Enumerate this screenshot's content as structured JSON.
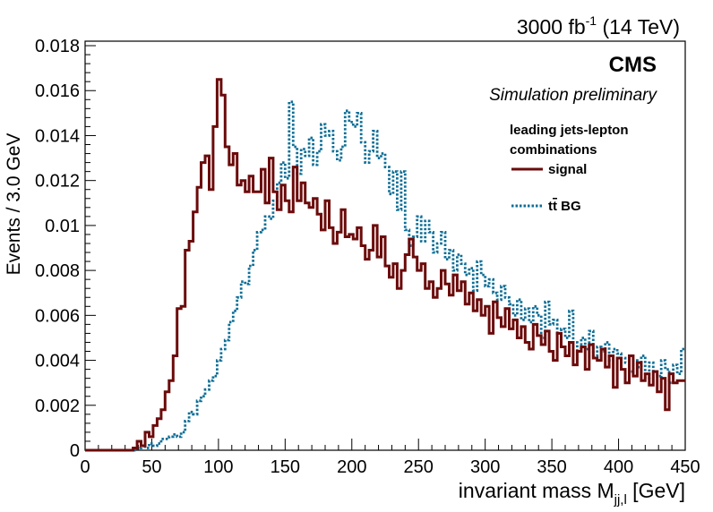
{
  "header": {
    "lumi_text": "3000 fb",
    "lumi_sup": "-1",
    "energy_text": " (14 TeV)"
  },
  "chart_data": {
    "type": "line",
    "experiment_label": "CMS",
    "subtitle": "Simulation preliminary",
    "xlabel_main": "invariant mass M",
    "xlabel_sub": "jj,l",
    "xlabel_unit": " [GeV]",
    "ylabel": "Events / 3.0 GeV",
    "xlim": [
      0,
      450
    ],
    "ylim": [
      0,
      0.0182
    ],
    "xticks": [
      "0",
      "50",
      "100",
      "150",
      "200",
      "250",
      "300",
      "350",
      "400",
      "450"
    ],
    "yticks": [
      "0",
      "0.002",
      "0.004",
      "0.006",
      "0.008",
      "0.01",
      "0.012",
      "0.014",
      "0.016",
      "0.018"
    ],
    "legend_title_lines": [
      "leading jets-lepton",
      "combinations"
    ],
    "legend_position": "top-right",
    "bin_width": 3.0,
    "series": [
      {
        "name": "signal",
        "color": "#6b0b0b",
        "style": "solid",
        "x": [
          36,
          39,
          42,
          45,
          48,
          51,
          54,
          57,
          60,
          63,
          66,
          69,
          72,
          75,
          78,
          81,
          84,
          87,
          90,
          93,
          96,
          99,
          102,
          105,
          108,
          111,
          114,
          117,
          120,
          123,
          126,
          129,
          132,
          135,
          138,
          141,
          144,
          147,
          150,
          153,
          156,
          159,
          162,
          165,
          168,
          171,
          174,
          177,
          180,
          183,
          186,
          189,
          192,
          195,
          198,
          201,
          204,
          207,
          210,
          213,
          216,
          219,
          222,
          225,
          228,
          231,
          234,
          237,
          240,
          243,
          246,
          249,
          252,
          255,
          258,
          261,
          264,
          267,
          270,
          273,
          276,
          279,
          282,
          285,
          288,
          291,
          294,
          297,
          300,
          303,
          306,
          309,
          312,
          315,
          318,
          321,
          324,
          327,
          330,
          333,
          336,
          339,
          342,
          345,
          348,
          351,
          354,
          357,
          360,
          363,
          366,
          369,
          372,
          375,
          378,
          381,
          384,
          387,
          390,
          393,
          396,
          399,
          402,
          405,
          408,
          411,
          414,
          417,
          420,
          423,
          426,
          429,
          432,
          435,
          438,
          441,
          444,
          447
        ],
        "values": [
          0.0001,
          0.0004,
          0.0002,
          0.0008,
          0.0006,
          0.0011,
          0.0014,
          0.0018,
          0.0026,
          0.0031,
          0.0042,
          0.0063,
          0.0064,
          0.0089,
          0.0093,
          0.0106,
          0.0117,
          0.0128,
          0.0131,
          0.0116,
          0.0144,
          0.0165,
          0.0158,
          0.0135,
          0.0127,
          0.0132,
          0.0118,
          0.012,
          0.0115,
          0.0122,
          0.0115,
          0.0115,
          0.0125,
          0.011,
          0.013,
          0.0115,
          0.0107,
          0.0118,
          0.0111,
          0.0106,
          0.0126,
          0.0111,
          0.0119,
          0.011,
          0.0108,
          0.0112,
          0.0105,
          0.0098,
          0.0111,
          0.0099,
          0.0092,
          0.0097,
          0.0107,
          0.0095,
          0.0096,
          0.0094,
          0.0099,
          0.0091,
          0.0085,
          0.0089,
          0.01,
          0.0086,
          0.0095,
          0.0082,
          0.0077,
          0.0083,
          0.0072,
          0.008,
          0.0087,
          0.0094,
          0.0086,
          0.008,
          0.0083,
          0.0072,
          0.0075,
          0.0068,
          0.0072,
          0.008,
          0.0074,
          0.0069,
          0.0078,
          0.0071,
          0.0075,
          0.0065,
          0.007,
          0.0062,
          0.0067,
          0.006,
          0.0064,
          0.0052,
          0.0066,
          0.0059,
          0.0055,
          0.0063,
          0.0054,
          0.0058,
          0.005,
          0.0055,
          0.0048,
          0.0045,
          0.0056,
          0.0051,
          0.0047,
          0.0053,
          0.0044,
          0.004,
          0.0052,
          0.0046,
          0.0042,
          0.0048,
          0.0038,
          0.0044,
          0.0046,
          0.0036,
          0.0047,
          0.0041,
          0.004,
          0.0045,
          0.0037,
          0.0042,
          0.0028,
          0.0041,
          0.0036,
          0.003,
          0.0042,
          0.0033,
          0.0039,
          0.0031,
          0.0034,
          0.0029,
          0.0035,
          0.0026,
          0.0032,
          0.0018,
          0.0034,
          0.003,
          0.0031,
          0.0031
        ]
      },
      {
        "name": "tt̄ BG",
        "legend_main": "t",
        "legend_bar": "t",
        "legend_suffix": " BG",
        "color": "#0e6e96",
        "style": "dotted",
        "x": [
          39,
          42,
          45,
          48,
          51,
          54,
          57,
          60,
          63,
          66,
          69,
          72,
          75,
          78,
          81,
          84,
          87,
          90,
          93,
          96,
          99,
          102,
          105,
          108,
          111,
          114,
          117,
          120,
          123,
          126,
          129,
          132,
          135,
          138,
          141,
          144,
          147,
          150,
          153,
          156,
          159,
          162,
          165,
          168,
          171,
          174,
          177,
          180,
          183,
          186,
          189,
          192,
          195,
          198,
          201,
          204,
          207,
          210,
          213,
          216,
          219,
          222,
          225,
          228,
          231,
          234,
          237,
          240,
          243,
          246,
          249,
          252,
          255,
          258,
          261,
          264,
          267,
          270,
          273,
          276,
          279,
          282,
          285,
          288,
          291,
          294,
          297,
          300,
          303,
          306,
          309,
          312,
          315,
          318,
          321,
          324,
          327,
          330,
          333,
          336,
          339,
          342,
          345,
          348,
          351,
          354,
          357,
          360,
          363,
          366,
          369,
          372,
          375,
          378,
          381,
          384,
          387,
          390,
          393,
          396,
          399,
          402,
          405,
          408,
          411,
          414,
          417,
          420,
          423,
          426,
          429,
          432,
          435,
          438,
          441,
          444,
          447
        ],
        "values": [
          0.0001,
          0.0002,
          0.0001,
          0.0003,
          0.0002,
          0.0003,
          0.0005,
          0.0005,
          0.0006,
          0.0007,
          0.0006,
          0.0008,
          0.0013,
          0.0017,
          0.0016,
          0.0022,
          0.0024,
          0.0027,
          0.0031,
          0.0033,
          0.004,
          0.0045,
          0.0049,
          0.0057,
          0.0062,
          0.0068,
          0.0075,
          0.0074,
          0.0082,
          0.0089,
          0.0097,
          0.0098,
          0.0104,
          0.0103,
          0.0111,
          0.0119,
          0.0128,
          0.0121,
          0.0155,
          0.0135,
          0.0123,
          0.0134,
          0.0131,
          0.0139,
          0.0127,
          0.0133,
          0.0145,
          0.014,
          0.0142,
          0.0133,
          0.0129,
          0.0135,
          0.0151,
          0.0146,
          0.0144,
          0.015,
          0.0137,
          0.0128,
          0.0133,
          0.0142,
          0.013,
          0.0132,
          0.0126,
          0.0114,
          0.0124,
          0.0107,
          0.0124,
          0.0098,
          0.0091,
          0.0095,
          0.0104,
          0.0093,
          0.0102,
          0.0097,
          0.0088,
          0.0092,
          0.0097,
          0.0085,
          0.0089,
          0.008,
          0.0087,
          0.0083,
          0.0078,
          0.0081,
          0.0071,
          0.0084,
          0.0078,
          0.0073,
          0.0076,
          0.007,
          0.0067,
          0.0073,
          0.0068,
          0.0065,
          0.006,
          0.0067,
          0.0058,
          0.0063,
          0.0057,
          0.0064,
          0.006,
          0.005,
          0.0066,
          0.0056,
          0.0058,
          0.0052,
          0.0054,
          0.005,
          0.0062,
          0.0048,
          0.0044,
          0.005,
          0.0045,
          0.0053,
          0.0042,
          0.0046,
          0.0044,
          0.0048,
          0.004,
          0.0045,
          0.0043,
          0.0041,
          0.0039,
          0.0035,
          0.004,
          0.0037,
          0.0042,
          0.0032,
          0.0039,
          0.0035,
          0.0033,
          0.004,
          0.0036,
          0.003,
          0.0038,
          0.0034,
          0.0045
        ]
      }
    ]
  }
}
